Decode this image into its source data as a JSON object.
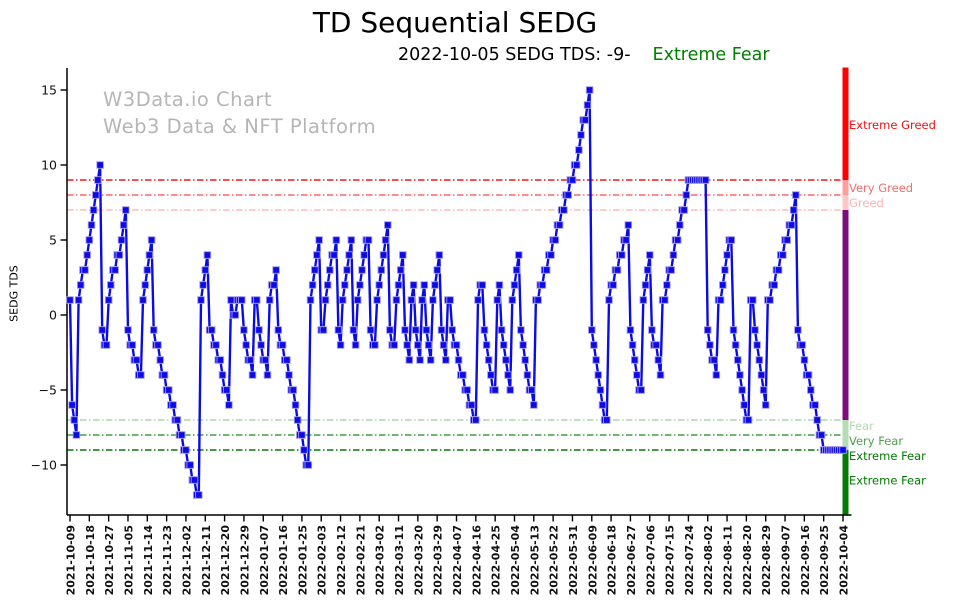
{
  "title": "TD Sequential SEDG",
  "subtitle": {
    "date_text": "2022-10-05 SEDG TDS: -9-",
    "sentiment": "Extreme Fear",
    "sentiment_color": "#008000"
  },
  "watermark": {
    "line1": "W3Data.io Chart",
    "line2": "Web3 Data & NFT Platform",
    "color": "#b5b5b5"
  },
  "chart_data": {
    "type": "line",
    "title": "TD Sequential SEDG",
    "ylabel": "SEDG TDS",
    "xlabel": "",
    "grid": false,
    "legend": false,
    "series_color": "#0b0be8",
    "marker": "square",
    "x_start_date": "2021-10-09",
    "x_end_date": "2022-10-04",
    "x_interval_days": 1,
    "ylim": [
      -13.3,
      16.5
    ],
    "y_ticks": [
      15,
      10,
      5,
      0,
      -5,
      -10
    ],
    "x_tick_labels": [
      "2021-10-09",
      "2021-10-18",
      "2021-10-27",
      "2021-11-05",
      "2021-11-14",
      "2021-11-23",
      "2021-12-02",
      "2021-12-11",
      "2021-12-20",
      "2021-12-29",
      "2022-01-07",
      "2022-01-16",
      "2022-01-25",
      "2022-02-03",
      "2022-02-12",
      "2022-02-21",
      "2022-03-02",
      "2022-03-11",
      "2022-03-20",
      "2022-03-29",
      "2022-04-07",
      "2022-04-16",
      "2022-04-25",
      "2022-05-04",
      "2022-05-13",
      "2022-05-22",
      "2022-05-31",
      "2022-06-09",
      "2022-06-18",
      "2022-06-27",
      "2022-07-06",
      "2022-07-15",
      "2022-07-24",
      "2022-08-02",
      "2022-08-11",
      "2022-08-20",
      "2022-08-29",
      "2022-09-07",
      "2022-09-16",
      "2022-09-25",
      "2022-10-04"
    ],
    "thresholds": [
      {
        "value": 9,
        "label": "",
        "color": "#f51717",
        "label_color": "#f51717"
      },
      {
        "value": 8,
        "label": "Very Greed",
        "color": "#ff6666",
        "label_color": "#f26d6d"
      },
      {
        "value": 7,
        "label": "Greed",
        "color": "#ffbbbb",
        "label_color": "#f9b4b4"
      },
      {
        "value": -7,
        "label": "Fear",
        "color": "#abd6ab",
        "label_color": "#b2d8b2"
      },
      {
        "value": -8,
        "label": "Very Fear",
        "color": "#3f9f3f",
        "label_color": "#4f9e4f"
      },
      {
        "value": -9,
        "label": "Extreme Fear",
        "color": "#067806",
        "label_color": "#067806"
      }
    ],
    "zone_labels": [
      {
        "text": "Extreme Greed",
        "color": "#ee1111",
        "y_value": 12.4
      },
      {
        "text": "Extreme Fear",
        "color": "#007a00",
        "y_value": -11.3
      }
    ],
    "sentiment_bar": [
      {
        "from": 16.5,
        "to": 9,
        "color": "#fe0000"
      },
      {
        "from": 9,
        "to": 8,
        "color": "#fb9f9f"
      },
      {
        "from": 8,
        "to": 7,
        "color": "#fdc7c7"
      },
      {
        "from": 7,
        "to": -7,
        "color": "#7d0c7d"
      },
      {
        "from": -7,
        "to": -9,
        "color": "#b5dcb5"
      },
      {
        "from": -9,
        "to": -13.3,
        "color": "#047a04"
      }
    ],
    "series": [
      {
        "name": "SEDG TDS",
        "values": [
          1,
          -6,
          -7,
          -8,
          1,
          2,
          3,
          3,
          4,
          5,
          6,
          7,
          8,
          9,
          10,
          -1,
          -2,
          -2,
          1,
          2,
          3,
          3,
          4,
          4,
          5,
          6,
          7,
          -1,
          -2,
          -2,
          -3,
          -3,
          -4,
          -4,
          1,
          2,
          3,
          4,
          5,
          -1,
          -2,
          -2,
          -3,
          -4,
          -4,
          -5,
          -5,
          -6,
          -6,
          -7,
          -7,
          -8,
          -8,
          -9,
          -9,
          -10,
          -10,
          -11,
          -11,
          -12,
          -12,
          1,
          2,
          3,
          4,
          -1,
          -1,
          -2,
          -2,
          -3,
          -3,
          -4,
          -5,
          -5,
          -6,
          1,
          0,
          0,
          1,
          1,
          1,
          -1,
          -2,
          -3,
          -3,
          -4,
          1,
          1,
          -1,
          -2,
          -3,
          -3,
          -4,
          1,
          2,
          2,
          3,
          -1,
          -2,
          -2,
          -3,
          -3,
          -4,
          -5,
          -5,
          -6,
          -7,
          -8,
          -8,
          -9,
          -10,
          -10,
          1,
          2,
          3,
          4,
          5,
          -1,
          -1,
          1,
          2,
          3,
          4,
          4,
          5,
          -1,
          -2,
          1,
          2,
          3,
          4,
          5,
          -1,
          -2,
          1,
          2,
          3,
          4,
          5,
          5,
          -1,
          -2,
          -2,
          1,
          2,
          3,
          4,
          5,
          6,
          -1,
          -2,
          -2,
          1,
          2,
          3,
          4,
          -1,
          -2,
          -3,
          1,
          2,
          -1,
          -2,
          -3,
          1,
          2,
          -1,
          -2,
          -3,
          1,
          2,
          3,
          4,
          -1,
          -2,
          -3,
          1,
          1,
          -1,
          -2,
          -2,
          -3,
          -4,
          -4,
          -5,
          -5,
          -6,
          -6,
          -7,
          -7,
          1,
          2,
          2,
          -1,
          -2,
          -3,
          -4,
          -5,
          -5,
          1,
          2,
          -1,
          -2,
          -3,
          -4,
          -5,
          1,
          2,
          3,
          4,
          -1,
          -2,
          -3,
          -4,
          -5,
          -5,
          -6,
          1,
          1,
          2,
          2,
          3,
          3,
          4,
          4,
          5,
          5,
          6,
          6,
          7,
          7,
          8,
          8,
          9,
          9,
          10,
          10,
          11,
          12,
          13,
          13,
          14,
          15,
          -1,
          -2,
          -3,
          -4,
          -5,
          -6,
          -7,
          -7,
          1,
          2,
          2,
          3,
          3,
          4,
          4,
          5,
          5,
          6,
          -1,
          -2,
          -3,
          -4,
          -5,
          -5,
          1,
          2,
          3,
          4,
          -1,
          -2,
          -2,
          -3,
          -4,
          1,
          1,
          2,
          3,
          3,
          4,
          5,
          5,
          6,
          7,
          7,
          8,
          9,
          9,
          9,
          9,
          9,
          9,
          9,
          9,
          9,
          -1,
          -2,
          -3,
          -3,
          -4,
          1,
          1,
          2,
          3,
          4,
          5,
          5,
          -1,
          -2,
          -3,
          -4,
          -5,
          -6,
          -7,
          -7,
          1,
          1,
          -1,
          -2,
          -3,
          -4,
          -5,
          -6,
          1,
          1,
          2,
          2,
          3,
          3,
          4,
          4,
          5,
          5,
          6,
          6,
          7,
          8,
          -1,
          -2,
          -2,
          -3,
          -4,
          -4,
          -5,
          -6,
          -6,
          -7,
          -8,
          -8,
          -9,
          -9,
          -9,
          -9,
          -9,
          -9,
          -9,
          -9,
          -9,
          -9
        ]
      }
    ]
  }
}
